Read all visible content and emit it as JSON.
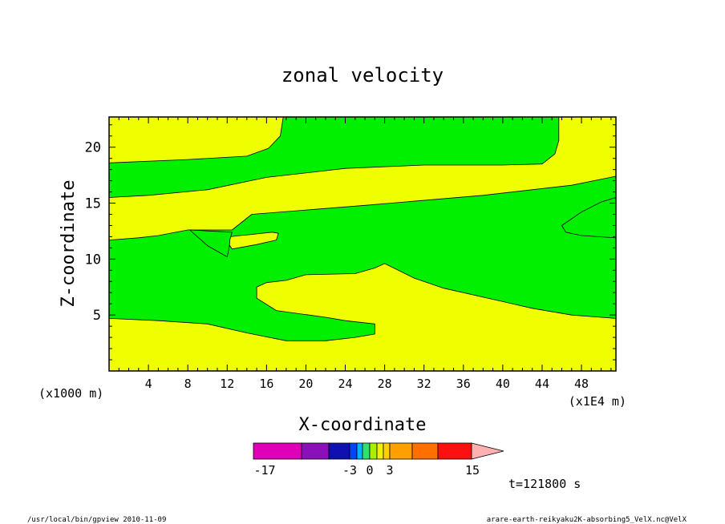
{
  "chart_data": {
    "type": "heatmap",
    "title": "zonal velocity",
    "xlabel": "X-coordinate",
    "ylabel": "Z-coordinate",
    "x_units_left": "(x1000 m)",
    "x_units_right": "(x1E4 m)",
    "x_ticks": [
      "4",
      "8",
      "12",
      "16",
      "20",
      "24",
      "28",
      "32",
      "36",
      "40",
      "44",
      "48"
    ],
    "y_ticks": [
      "5",
      "10",
      "15",
      "20"
    ],
    "xlim": [
      0,
      51.5
    ],
    "ylim": [
      0,
      22.7
    ],
    "time_label": "t=121800 s",
    "colorbar": {
      "tick_labels": [
        "-17",
        "-3",
        "0",
        "3",
        "15"
      ],
      "colors": [
        "#e000b8",
        "#8a10b8",
        "#1010b0",
        "#0044ff",
        "#00b4ff",
        "#30e070",
        "#a8f000",
        "#f0f000",
        "#ffd000",
        "#ffa000",
        "#ff7000",
        "#ff1010",
        "#ff7070",
        "#ffb0b0"
      ]
    },
    "fill_colors": {
      "negative": "#00f000",
      "positive": "#f0ff00"
    },
    "regions": [
      {
        "sign": "positive",
        "points": [
          [
            0,
            22.7
          ],
          [
            17.7,
            22.7
          ],
          [
            17.4,
            21.0
          ],
          [
            16.2,
            19.9
          ],
          [
            14.0,
            19.2
          ],
          [
            8.0,
            18.9
          ],
          [
            0,
            18.6
          ]
        ]
      },
      {
        "sign": "positive",
        "points": [
          [
            45.7,
            22.7
          ],
          [
            51.5,
            22.7
          ],
          [
            51.5,
            4.7
          ],
          [
            47,
            5.0
          ],
          [
            43,
            5.6
          ],
          [
            40,
            6.2
          ],
          [
            34,
            7.4
          ],
          [
            31,
            8.3
          ],
          [
            28,
            9.6
          ],
          [
            27,
            9.2
          ],
          [
            25,
            8.7
          ],
          [
            20,
            8.6
          ],
          [
            18,
            8.1
          ],
          [
            16,
            7.9
          ],
          [
            15,
            7.5
          ],
          [
            15,
            6.5
          ],
          [
            17,
            5.4
          ],
          [
            22,
            4.8
          ],
          [
            24,
            4.5
          ],
          [
            27,
            4.2
          ],
          [
            27,
            3.3
          ],
          [
            25,
            3.0
          ],
          [
            22,
            2.7
          ],
          [
            18,
            2.7
          ],
          [
            14,
            3.4
          ],
          [
            10,
            4.2
          ],
          [
            5,
            4.5
          ],
          [
            0,
            4.7
          ],
          [
            0,
            0
          ],
          [
            51.5,
            0
          ],
          [
            51.5,
            17.4
          ],
          [
            47,
            16.6
          ],
          [
            38,
            15.7
          ],
          [
            26,
            14.8
          ],
          [
            14.5,
            14.0
          ],
          [
            12.5,
            12.6
          ],
          [
            8,
            12.6
          ],
          [
            5,
            12.1
          ],
          [
            3,
            11.9
          ],
          [
            0,
            11.7
          ],
          [
            0,
            15.5
          ],
          [
            4,
            15.7
          ],
          [
            10,
            16.2
          ],
          [
            16,
            17.3
          ],
          [
            24,
            18.1
          ],
          [
            32,
            18.4
          ],
          [
            40,
            18.4
          ],
          [
            44,
            18.5
          ],
          [
            45.3,
            19.4
          ],
          [
            45.7,
            20.6
          ]
        ]
      },
      {
        "sign": "negative",
        "points": [
          [
            51.5,
            15.5
          ],
          [
            50,
            15.1
          ],
          [
            48,
            14.2
          ],
          [
            46,
            13.0
          ],
          [
            46.4,
            12.4
          ],
          [
            48,
            12.1
          ],
          [
            51.5,
            11.9
          ]
        ]
      },
      {
        "sign": "positive",
        "points": [
          [
            12.3,
            12.0
          ],
          [
            13.3,
            12.1
          ],
          [
            14.5,
            12.2
          ],
          [
            15.5,
            12.3
          ],
          [
            16.6,
            12.4
          ],
          [
            17.2,
            12.3
          ],
          [
            17.0,
            11.7
          ],
          [
            15.0,
            11.3
          ],
          [
            12.5,
            10.9
          ],
          [
            12.2,
            11.3
          ]
        ]
      },
      {
        "sign": "negative",
        "points": [
          [
            12.5,
            12.4
          ],
          [
            8.2,
            12.6
          ],
          [
            10.0,
            11.2
          ],
          [
            11.2,
            10.6
          ],
          [
            12.0,
            10.2
          ],
          [
            12.2,
            11.0
          ],
          [
            12.3,
            11.8
          ]
        ]
      }
    ],
    "footer_left": "/usr/local/bin/gpview  2010-11-09",
    "footer_right": "arare-earth-reikyaku2K-absorbing5_VelX.nc@VelX"
  }
}
